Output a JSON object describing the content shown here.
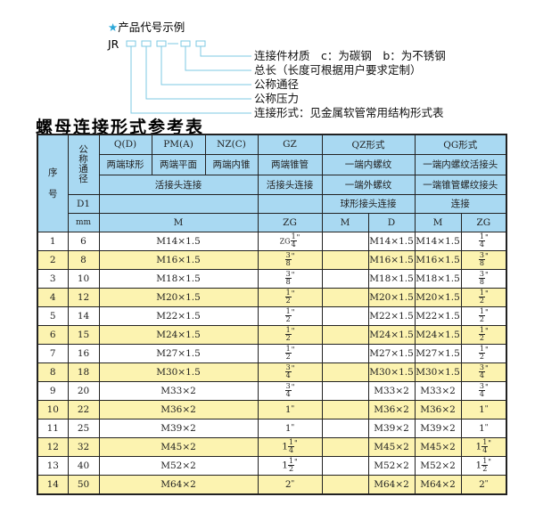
{
  "example": {
    "title": "产品代号示例",
    "star_icon": "star-icon",
    "code_prefix": "JR",
    "code_separator": "-",
    "labels": [
      "连接件材质　c：为碳钢　b：为不锈钢",
      "总长（长度可根据用户要求定制）",
      "公称通径",
      "公称压力",
      "连接形式：见金属软管常用结构形式表"
    ],
    "line_color": "#7ec8e3"
  },
  "table_title": "螺母连接形式参考表",
  "colors": {
    "header": "#a9d9f2",
    "row_alt": "#fcf3b0",
    "border": "#222222"
  },
  "header": {
    "seq": "序\n\n号",
    "nominal": "公称通径",
    "qd": "Q(D)",
    "pm": "PM(A)",
    "nz": "NZ(C)",
    "gz": "GZ",
    "qz": "QZ形式",
    "qg": "QG形式",
    "qd_desc": "两端球形",
    "pm_desc": "两端平面",
    "nz_desc": "两端内锥",
    "gz_desc": "两端锥管",
    "qz_desc1": "一端内螺纹",
    "qg_desc1": "一端内螺纹活接头",
    "union_conn": "活接头连接",
    "gz_conn": "活接头连接",
    "qz_desc2": "一端外螺纹",
    "qg_desc2": "一端锥管螺纹接头",
    "d1": "D1",
    "qz_desc3": "球形接头连接",
    "qg_desc3": "连接",
    "mm": "mm",
    "m": "M",
    "zg": "ZG",
    "qz_m": "M",
    "qz_d": "D",
    "qg_m": "M",
    "qg_zg": "ZG"
  },
  "rows": [
    {
      "no": "1",
      "dn": "6",
      "m": "M14×1.5",
      "zg": {
        "prefix": "ZG",
        "whole": "",
        "num": "1",
        "den": "4",
        "unit": "\""
      }
    },
    {
      "no": "2",
      "dn": "8",
      "m": "M16×1.5",
      "zg": {
        "prefix": "",
        "whole": "",
        "num": "3",
        "den": "8",
        "unit": "\""
      }
    },
    {
      "no": "3",
      "dn": "10",
      "m": "M18×1.5",
      "zg": {
        "prefix": "",
        "whole": "",
        "num": "3",
        "den": "8",
        "unit": "\""
      }
    },
    {
      "no": "4",
      "dn": "12",
      "m": "M20×1.5",
      "zg": {
        "prefix": "",
        "whole": "",
        "num": "1",
        "den": "2",
        "unit": "\""
      }
    },
    {
      "no": "5",
      "dn": "14",
      "m": "M22×1.5",
      "zg": {
        "prefix": "",
        "whole": "",
        "num": "1",
        "den": "2",
        "unit": "\""
      }
    },
    {
      "no": "6",
      "dn": "15",
      "m": "M24×1.5",
      "zg": {
        "prefix": "",
        "whole": "",
        "num": "1",
        "den": "2",
        "unit": "\""
      }
    },
    {
      "no": "7",
      "dn": "16",
      "m": "M27×1.5",
      "zg": {
        "prefix": "",
        "whole": "",
        "num": "1",
        "den": "2",
        "unit": "\""
      }
    },
    {
      "no": "8",
      "dn": "18",
      "m": "M30×1.5",
      "zg": {
        "prefix": "",
        "whole": "",
        "num": "3",
        "den": "4",
        "unit": "\""
      }
    },
    {
      "no": "9",
      "dn": "20",
      "m": "M33×2",
      "zg": {
        "prefix": "",
        "whole": "",
        "num": "3",
        "den": "4",
        "unit": "\""
      }
    },
    {
      "no": "10",
      "dn": "22",
      "m": "M36×2",
      "zg": {
        "prefix": "",
        "whole": "1",
        "num": "",
        "den": "",
        "unit": "\""
      }
    },
    {
      "no": "11",
      "dn": "25",
      "m": "M39×2",
      "zg": {
        "prefix": "",
        "whole": "1",
        "num": "",
        "den": "",
        "unit": "\""
      }
    },
    {
      "no": "12",
      "dn": "32",
      "m": "M45×2",
      "zg": {
        "prefix": "",
        "whole": "1",
        "num": "1",
        "den": "4",
        "unit": "\""
      }
    },
    {
      "no": "13",
      "dn": "40",
      "m": "M52×2",
      "zg": {
        "prefix": "",
        "whole": "1",
        "num": "1",
        "den": "2",
        "unit": "\""
      }
    },
    {
      "no": "14",
      "dn": "50",
      "m": "M64×2",
      "zg": {
        "prefix": "",
        "whole": "2",
        "num": "",
        "den": "",
        "unit": "\""
      }
    }
  ]
}
